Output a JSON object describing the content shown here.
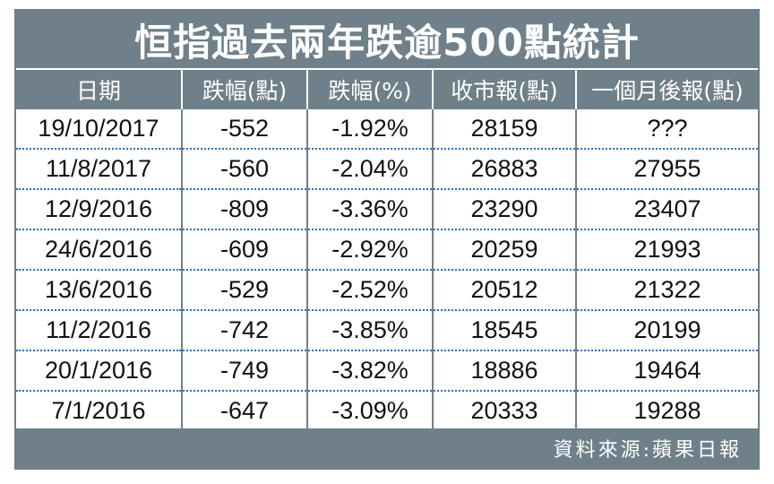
{
  "title": "恒指過去兩年跌逾500點統計",
  "columns": [
    "日期",
    "跌幅(點)",
    "跌幅(%)",
    "收市報(點)",
    "一個月後報(點)"
  ],
  "rows": [
    [
      "19/10/2017",
      "-552",
      "-1.92%",
      "28159",
      "???"
    ],
    [
      "11/8/2017",
      "-560",
      "-2.04%",
      "26883",
      "27955"
    ],
    [
      "12/9/2016",
      "-809",
      "-3.36%",
      "23290",
      "23407"
    ],
    [
      "24/6/2016",
      "-609",
      "-2.92%",
      "20259",
      "21993"
    ],
    [
      "13/6/2016",
      "-529",
      "-2.52%",
      "20512",
      "21322"
    ],
    [
      "11/2/2016",
      "-742",
      "-3.85%",
      "18545",
      "20199"
    ],
    [
      "20/1/2016",
      "-749",
      "-3.82%",
      "18886",
      "19464"
    ],
    [
      "7/1/2016",
      "-647",
      "-3.09%",
      "20333",
      "19288"
    ]
  ],
  "source": "資料來源:蘋果日報",
  "colors": {
    "header_bg": "#6f808a",
    "row_divider": "#2f6fb6",
    "text": "#111111"
  }
}
